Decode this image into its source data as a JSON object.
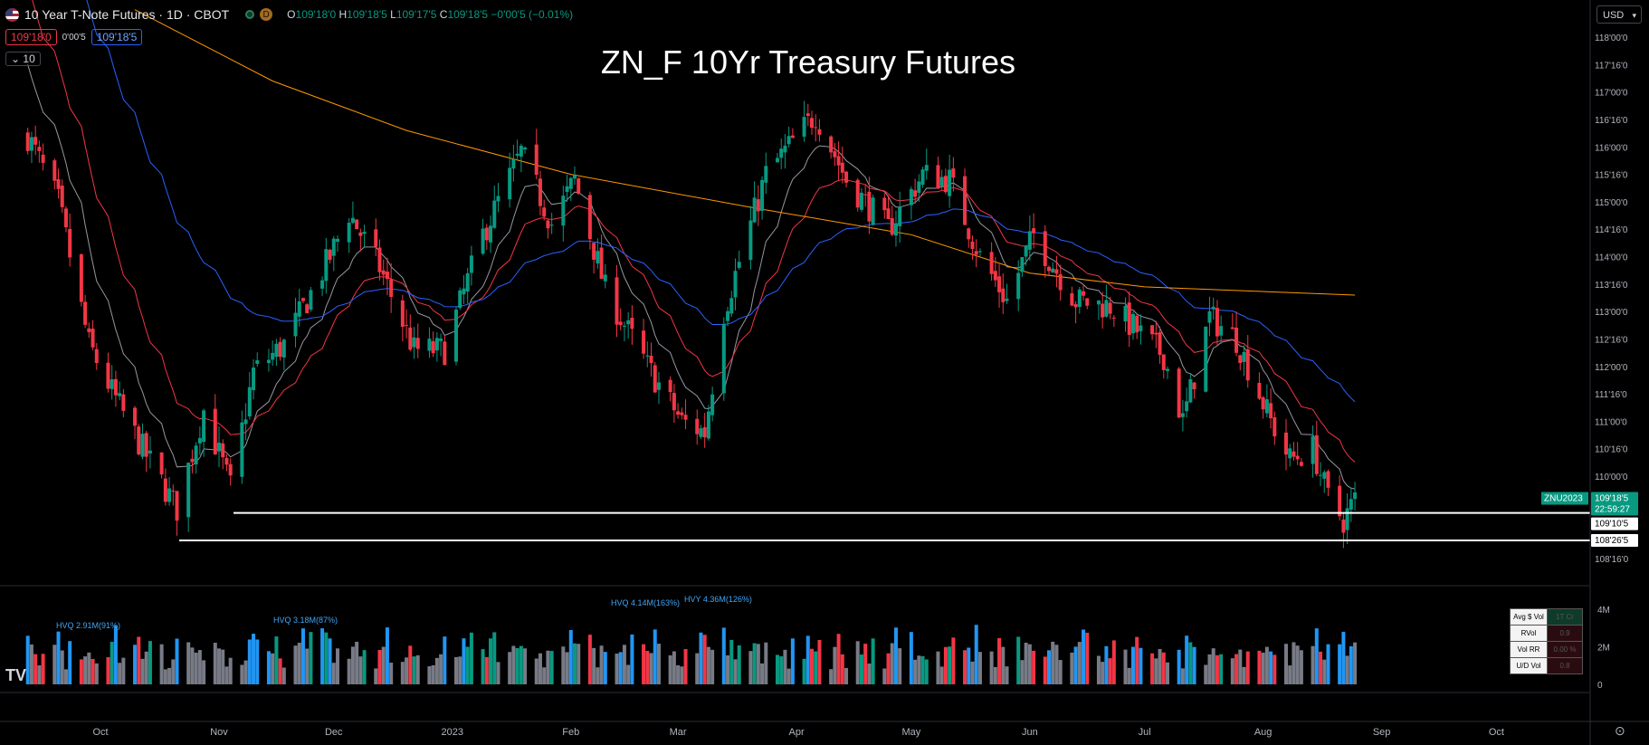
{
  "header": {
    "symbol_title": "10 Year T-Note Futures · 1D · CBOT",
    "d_badge": "D",
    "ohlc": [
      {
        "k": "O",
        "v": "109'18'0"
      },
      {
        "k": "H",
        "v": "109'18'5"
      },
      {
        "k": "L",
        "v": "109'17'5"
      },
      {
        "k": "C",
        "v": "109'18'5"
      }
    ],
    "change": "−0'00'5 (−0.01%)",
    "sell_price": "109'18'0",
    "spread": "0'00'5",
    "buy_price": "109'18'5",
    "collapse_label": "10"
  },
  "title": "ZN_F 10Yr Treasury Futures",
  "currency": "USD",
  "price_axis": {
    "ticks": [
      "118'00'0",
      "117'16'0",
      "117'00'0",
      "116'16'0",
      "116'00'0",
      "115'16'0",
      "115'00'0",
      "114'16'0",
      "114'00'0",
      "113'16'0",
      "113'00'0",
      "112'16'0",
      "112'00'0",
      "111'16'0",
      "111'00'0",
      "110'16'0",
      "110'00'0",
      "108'16'0"
    ],
    "last_symbol": "ZNU2023",
    "last_price": "109'18'5",
    "countdown": "22:59:27",
    "level_high": "109'10'5",
    "level_low": "108'26'5"
  },
  "volume_axis": {
    "ticks": [
      "4M",
      "2M",
      "0"
    ]
  },
  "volume_stats": [
    {
      "k": "Avg $ Vol",
      "v": "1T Cr",
      "color": "#0e3b2a"
    },
    {
      "k": "RVol",
      "v": "0.9",
      "color": "#3b0e14"
    },
    {
      "k": "Vol RR",
      "v": "0.00 %",
      "color": "#3b0e14"
    },
    {
      "k": "U/D Vol",
      "v": "0.8",
      "color": "#3b0e14"
    }
  ],
  "volume_annotations": [
    "HVQ 2.91M(91%)",
    "HVQ 3.18M(87%)",
    "HVQ 4.14M(163%)",
    "HVY 4.36M(126%)"
  ],
  "volume_markers": [
    "Y",
    "Y",
    "Q"
  ],
  "time_axis": [
    "Oct",
    "Nov",
    "Dec",
    "2023",
    "Feb",
    "Mar",
    "Apr",
    "May",
    "Jun",
    "Jul",
    "Aug",
    "Sep",
    "Oct"
  ],
  "colors": {
    "up": "#089981",
    "down": "#f23645",
    "bg": "#000000",
    "ema_fast": "#9598a1",
    "ema_mid": "#f23645",
    "ema_slow": "#2962ff",
    "sma_long": "#ff9800",
    "vol_neutral": "#787b86",
    "vol_hv": "#2196f3"
  },
  "chart_data": {
    "type": "candlestick",
    "title": "ZN_F 10Yr Treasury Futures",
    "x_range": [
      "2022-09-12",
      "2023-08-25"
    ],
    "ylim": [
      108.3,
      118.1
    ],
    "price_keypoints": [
      [
        "2022-09-12",
        116.2
      ],
      [
        "2022-09-20",
        115.0
      ],
      [
        "2022-09-28",
        112.4
      ],
      [
        "2022-10-05",
        111.4
      ],
      [
        "2022-10-12",
        110.5
      ],
      [
        "2022-10-21",
        109.4
      ],
      [
        "2022-10-28",
        111.2
      ],
      [
        "2022-11-04",
        109.8
      ],
      [
        "2022-11-10",
        111.9
      ],
      [
        "2022-11-18",
        112.4
      ],
      [
        "2022-11-30",
        114.0
      ],
      [
        "2022-12-05",
        114.8
      ],
      [
        "2022-12-13",
        113.8
      ],
      [
        "2022-12-22",
        112.3
      ],
      [
        "2022-12-30",
        112.3
      ],
      [
        "2023-01-09",
        114.4
      ],
      [
        "2023-01-19",
        115.9
      ],
      [
        "2023-01-27",
        114.6
      ],
      [
        "2023-02-02",
        115.4
      ],
      [
        "2023-02-10",
        113.4
      ],
      [
        "2023-02-21",
        112.0
      ],
      [
        "2023-03-02",
        111.0
      ],
      [
        "2023-03-08",
        110.8
      ],
      [
        "2023-03-13",
        113.0
      ],
      [
        "2023-03-24",
        115.5
      ],
      [
        "2023-04-06",
        116.6
      ],
      [
        "2023-04-14",
        115.4
      ],
      [
        "2023-04-25",
        114.5
      ],
      [
        "2023-05-04",
        115.5
      ],
      [
        "2023-05-11",
        115.4
      ],
      [
        "2023-05-19",
        114.0
      ],
      [
        "2023-05-26",
        113.2
      ],
      [
        "2023-06-02",
        114.4
      ],
      [
        "2023-06-13",
        113.2
      ],
      [
        "2023-06-22",
        113.1
      ],
      [
        "2023-07-06",
        112.2
      ],
      [
        "2023-07-11",
        111.0
      ],
      [
        "2023-07-18",
        112.9
      ],
      [
        "2023-07-25",
        112.5
      ],
      [
        "2023-08-03",
        111.0
      ],
      [
        "2023-08-08",
        110.3
      ],
      [
        "2023-08-14",
        110.5
      ],
      [
        "2023-08-18",
        109.6
      ],
      [
        "2023-08-22",
        109.2
      ],
      [
        "2023-08-25",
        109.58
      ]
    ],
    "support_levels": [
      109.33,
      108.83
    ],
    "moving_average_endpoints": {
      "ema_fast": 109.9,
      "ema_mid": 110.3,
      "ema_slow": 111.5,
      "sma_long": 113.3
    },
    "volume_ylim": [
      0,
      4500000
    ],
    "ohlc_last": {
      "open": "109'18'0",
      "high": "109'18'5",
      "low": "109'17'5",
      "close": "109'18'5"
    }
  }
}
